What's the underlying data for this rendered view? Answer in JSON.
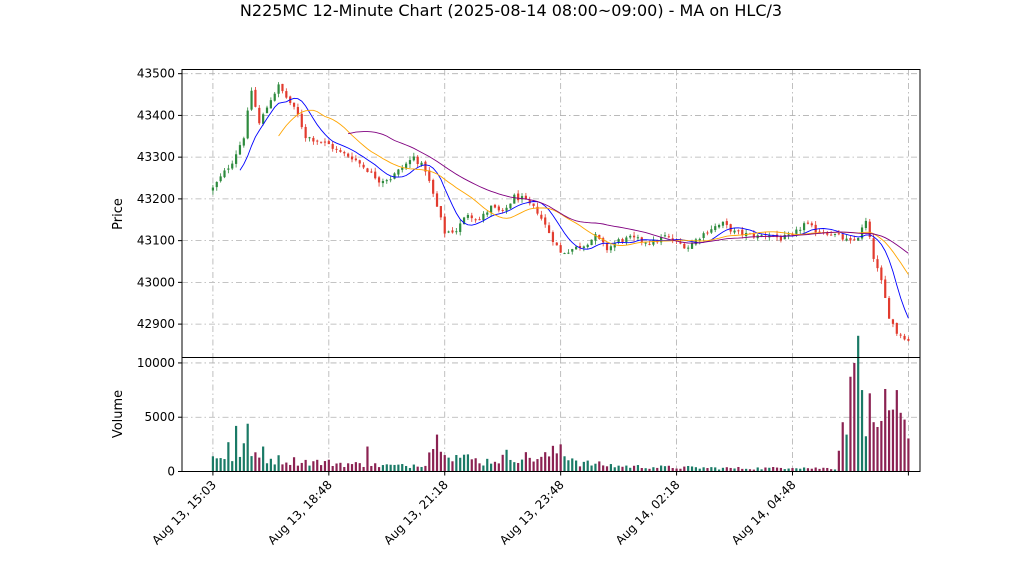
{
  "chart_data": {
    "type": "candlestick",
    "title": "N225MC 12-Minute Chart (2025-08-14 08:00~09:00) - MA on HLC/3",
    "price_panel": {
      "ylabel": "Price",
      "ylim": [
        42820,
        43510
      ],
      "yticks": [
        42900,
        43000,
        43100,
        43200,
        43300,
        43400,
        43500
      ],
      "ytick_labels": [
        "42900",
        "43000",
        "43100",
        "43200",
        "43300",
        "43400",
        "43500"
      ]
    },
    "volume_panel": {
      "ylabel": "Volume",
      "ylim": [
        0,
        10500
      ],
      "yticks": [
        0,
        5000,
        10000
      ],
      "ytick_labels": [
        "0",
        "5000",
        "10000"
      ]
    },
    "xlim": [
      -8,
      183
    ],
    "xticks": [
      {
        "index": 0,
        "label": "Aug 13, 15:03"
      },
      {
        "index": 30,
        "label": "Aug 13, 18:48"
      },
      {
        "index": 60,
        "label": "Aug 13, 21:18"
      },
      {
        "index": 90,
        "label": "Aug 13, 23:48"
      },
      {
        "index": 120,
        "label": "Aug 14, 02:18"
      },
      {
        "index": 150,
        "label": "Aug 14, 04:48"
      },
      {
        "index": 180,
        "label": ""
      }
    ],
    "grid": true,
    "colors": {
      "up": "#2e8b3e",
      "down": "#e23b2e",
      "vol_up": "#1a7a66",
      "vol_down": "#8b2252",
      "ma_short": "#0000ff",
      "ma_mid": "#ffa500",
      "ma_long": "#800080"
    },
    "series_note": "bars indexed 0..180 at 12-minute spacing",
    "anchors": [
      [
        0,
        43225
      ],
      [
        5,
        43290
      ],
      [
        8,
        43350
      ],
      [
        10,
        43460
      ],
      [
        12,
        43380
      ],
      [
        15,
        43440
      ],
      [
        17,
        43470
      ],
      [
        20,
        43430
      ],
      [
        22,
        43400
      ],
      [
        24,
        43350
      ],
      [
        27,
        43340
      ],
      [
        30,
        43330
      ],
      [
        33,
        43310
      ],
      [
        36,
        43300
      ],
      [
        40,
        43270
      ],
      [
        43,
        43245
      ],
      [
        46,
        43250
      ],
      [
        49,
        43275
      ],
      [
        52,
        43300
      ],
      [
        55,
        43270
      ],
      [
        58,
        43180
      ],
      [
        60,
        43120
      ],
      [
        63,
        43125
      ],
      [
        66,
        43165
      ],
      [
        69,
        43150
      ],
      [
        72,
        43180
      ],
      [
        75,
        43165
      ],
      [
        78,
        43205
      ],
      [
        80,
        43200
      ],
      [
        84,
        43170
      ],
      [
        87,
        43120
      ],
      [
        90,
        43070
      ],
      [
        93,
        43080
      ],
      [
        96,
        43090
      ],
      [
        99,
        43110
      ],
      [
        102,
        43080
      ],
      [
        105,
        43100
      ],
      [
        108,
        43105
      ],
      [
        111,
        43100
      ],
      [
        114,
        43095
      ],
      [
        117,
        43110
      ],
      [
        120,
        43095
      ],
      [
        123,
        43085
      ],
      [
        126,
        43110
      ],
      [
        129,
        43130
      ],
      [
        132,
        43140
      ],
      [
        135,
        43120
      ],
      [
        138,
        43115
      ],
      [
        141,
        43110
      ],
      [
        144,
        43115
      ],
      [
        147,
        43105
      ],
      [
        150,
        43110
      ],
      [
        153,
        43140
      ],
      [
        156,
        43125
      ],
      [
        159,
        43120
      ],
      [
        162,
        43110
      ],
      [
        165,
        43095
      ],
      [
        167,
        43110
      ],
      [
        169,
        43145
      ],
      [
        171,
        43060
      ],
      [
        173,
        43000
      ],
      [
        175,
        42920
      ],
      [
        177,
        42880
      ],
      [
        179,
        42870
      ],
      [
        180,
        42860
      ]
    ],
    "volume_profile": [
      [
        0,
        1100
      ],
      [
        10,
        1300
      ],
      [
        20,
        1000
      ],
      [
        30,
        800
      ],
      [
        40,
        600
      ],
      [
        50,
        500
      ],
      [
        55,
        800
      ],
      [
        57,
        2800
      ],
      [
        59,
        3300
      ],
      [
        62,
        1500
      ],
      [
        70,
        900
      ],
      [
        78,
        1400
      ],
      [
        85,
        1200
      ],
      [
        90,
        2000
      ],
      [
        95,
        800
      ],
      [
        105,
        500
      ],
      [
        115,
        400
      ],
      [
        125,
        350
      ],
      [
        135,
        300
      ],
      [
        145,
        300
      ],
      [
        150,
        450
      ],
      [
        155,
        300
      ],
      [
        161,
        300
      ],
      [
        163,
        4500
      ],
      [
        165,
        6500
      ],
      [
        167,
        9500
      ],
      [
        169,
        5500
      ],
      [
        171,
        4000
      ],
      [
        173,
        6000
      ],
      [
        175,
        4500
      ],
      [
        177,
        6500
      ],
      [
        179,
        3500
      ],
      [
        180,
        2500
      ]
    ],
    "volume_spikes": [
      [
        0,
        1400
      ],
      [
        4,
        2700
      ],
      [
        6,
        4200
      ],
      [
        8,
        2600
      ],
      [
        9,
        4400
      ],
      [
        13,
        2300
      ],
      [
        40,
        2300
      ],
      [
        58,
        3400
      ],
      [
        76,
        2000
      ],
      [
        90,
        2500
      ],
      [
        166,
        10000
      ],
      [
        168,
        7500
      ],
      [
        170,
        7200
      ],
      [
        172,
        4100
      ],
      [
        174,
        7600
      ],
      [
        176,
        5700
      ],
      [
        177,
        7500
      ]
    ]
  }
}
